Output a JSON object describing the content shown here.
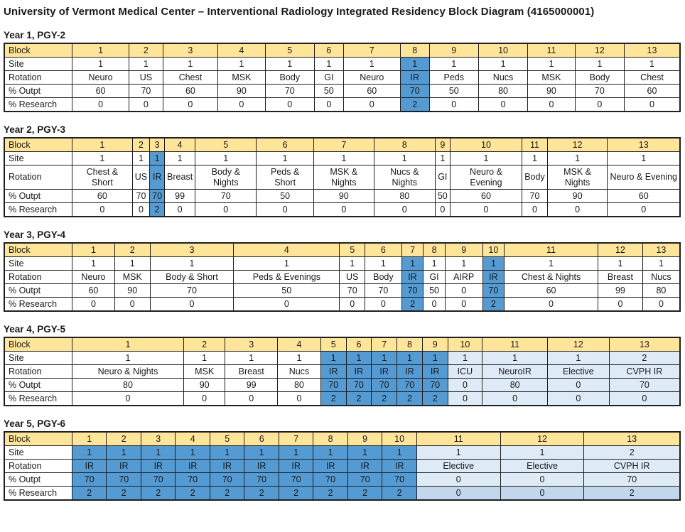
{
  "title": "University of Vermont Medical Center – Interventional Radiology Integrated Residency Block Diagram (4165000001)",
  "row_labels": {
    "block": "Block",
    "site": "Site",
    "rotation": "Rotation",
    "outpt": "% Outpt",
    "research": "% Research"
  },
  "colors": {
    "header_tan": "#FFE599",
    "highlight_blue": "#549AD3",
    "highlight_light_blue": "#DEEAF6",
    "highlight_light_blue_darker": "#C2D7EC",
    "border": "#1f1f1f",
    "text": "#1a1a1a"
  },
  "years": [
    {
      "heading": "Year 1, PGY-2",
      "blocks": [
        1,
        2,
        3,
        4,
        5,
        6,
        7,
        8,
        9,
        10,
        11,
        12,
        13
      ],
      "site": [
        "1",
        "1",
        "1",
        "1",
        "1",
        "1",
        "1",
        "1",
        "1",
        "1",
        "1",
        "1",
        "1"
      ],
      "rotation": [
        "Neuro",
        "US",
        "Chest",
        "MSK",
        "Body",
        "GI",
        "Neuro",
        "IR",
        "Peds",
        "Nucs",
        "MSK",
        "Body",
        "Chest"
      ],
      "outpt": [
        "60",
        "70",
        "60",
        "90",
        "70",
        "50",
        "60",
        "70",
        "50",
        "80",
        "90",
        "70",
        "60"
      ],
      "research": [
        "0",
        "0",
        "0",
        "0",
        "0",
        "0",
        "0",
        "2",
        "0",
        "0",
        "0",
        "0",
        "0"
      ],
      "blue_blocks": [
        8
      ],
      "light_blocks": [],
      "research_shade_blocks": []
    },
    {
      "heading": "Year 2, PGY-3",
      "blocks": [
        1,
        2,
        3,
        4,
        5,
        6,
        7,
        8,
        9,
        10,
        11,
        12,
        13
      ],
      "site": [
        "1",
        "1",
        "1",
        "1",
        "1",
        "1",
        "1",
        "1",
        "1",
        "1",
        "1",
        "1",
        "1"
      ],
      "rotation": [
        "Chest & Short",
        "US",
        "IR",
        "Breast",
        "Body & Nights",
        "Peds & Short",
        "MSK & Nights",
        "Nucs & Nights",
        "GI",
        "Neuro & Evening",
        "Body",
        "MSK & Nights",
        "Neuro & Evening"
      ],
      "outpt": [
        "60",
        "70",
        "70",
        "99",
        "70",
        "50",
        "90",
        "80",
        "50",
        "60",
        "70",
        "90",
        "60"
      ],
      "research": [
        "0",
        "0",
        "2",
        "0",
        "0",
        "0",
        "0",
        "0",
        "0",
        "0",
        "0",
        "0",
        "0"
      ],
      "blue_blocks": [
        3
      ],
      "light_blocks": [],
      "research_shade_blocks": []
    },
    {
      "heading": "Year 3, PGY-4",
      "blocks": [
        1,
        2,
        3,
        4,
        5,
        6,
        7,
        8,
        9,
        10,
        11,
        12,
        13
      ],
      "site": [
        "1",
        "1",
        "1",
        "1",
        "1",
        "1",
        "1",
        "1",
        "1",
        "1",
        "1",
        "1",
        "1"
      ],
      "rotation": [
        "Neuro",
        "MSK",
        "Body & Short",
        "Peds & Evenings",
        "US",
        "Body",
        "IR",
        "GI",
        "AIRP",
        "IR",
        "Chest & Nights",
        "Breast",
        "Nucs"
      ],
      "outpt": [
        "60",
        "90",
        "70",
        "50",
        "70",
        "70",
        "70",
        "50",
        "0",
        "70",
        "60",
        "99",
        "80"
      ],
      "research": [
        "0",
        "0",
        "0",
        "0",
        "0",
        "0",
        "2",
        "0",
        "0",
        "2",
        "0",
        "0",
        "0"
      ],
      "blue_blocks": [
        7,
        10
      ],
      "light_blocks": [],
      "research_shade_blocks": []
    },
    {
      "heading": "Year 4, PGY-5",
      "blocks": [
        1,
        2,
        3,
        4,
        5,
        6,
        7,
        8,
        9,
        10,
        11,
        12,
        13
      ],
      "site": [
        "1",
        "1",
        "1",
        "1",
        "1",
        "1",
        "1",
        "1",
        "1",
        "1",
        "1",
        "1",
        "2"
      ],
      "rotation": [
        "Neuro & Nights",
        "MSK",
        "Breast",
        "Nucs",
        "IR",
        "IR",
        "IR",
        "IR",
        "IR",
        "ICU",
        "NeuroIR",
        "Elective",
        "CVPH IR"
      ],
      "outpt": [
        "80",
        "90",
        "99",
        "80",
        "70",
        "70",
        "70",
        "70",
        "70",
        "0",
        "80",
        "0",
        "70"
      ],
      "research": [
        "0",
        "0",
        "0",
        "0",
        "2",
        "2",
        "2",
        "2",
        "2",
        "0",
        "0",
        "0",
        "0"
      ],
      "blue_blocks": [
        5,
        6,
        7,
        8,
        9
      ],
      "light_blocks": [
        10,
        11,
        12,
        13
      ],
      "research_shade_blocks": []
    },
    {
      "heading": "Year 5, PGY-6",
      "blocks": [
        1,
        2,
        3,
        4,
        5,
        6,
        7,
        8,
        9,
        10,
        11,
        12,
        13
      ],
      "site": [
        "1",
        "1",
        "1",
        "1",
        "1",
        "1",
        "1",
        "1",
        "1",
        "1",
        "1",
        "1",
        "2"
      ],
      "rotation": [
        "IR",
        "IR",
        "IR",
        "IR",
        "IR",
        "IR",
        "IR",
        "IR",
        "IR",
        "IR",
        "Elective",
        "Elective",
        "CVPH IR"
      ],
      "outpt": [
        "70",
        "70",
        "70",
        "70",
        "70",
        "70",
        "70",
        "70",
        "70",
        "70",
        "0",
        "0",
        "70"
      ],
      "research": [
        "2",
        "2",
        "2",
        "2",
        "2",
        "2",
        "2",
        "2",
        "2",
        "2",
        "0",
        "0",
        "2"
      ],
      "blue_blocks": [
        1,
        2,
        3,
        4,
        5,
        6,
        7,
        8,
        9,
        10
      ],
      "light_blocks": [
        11,
        12,
        13
      ],
      "research_shade_blocks": [
        11,
        12,
        13
      ]
    }
  ]
}
